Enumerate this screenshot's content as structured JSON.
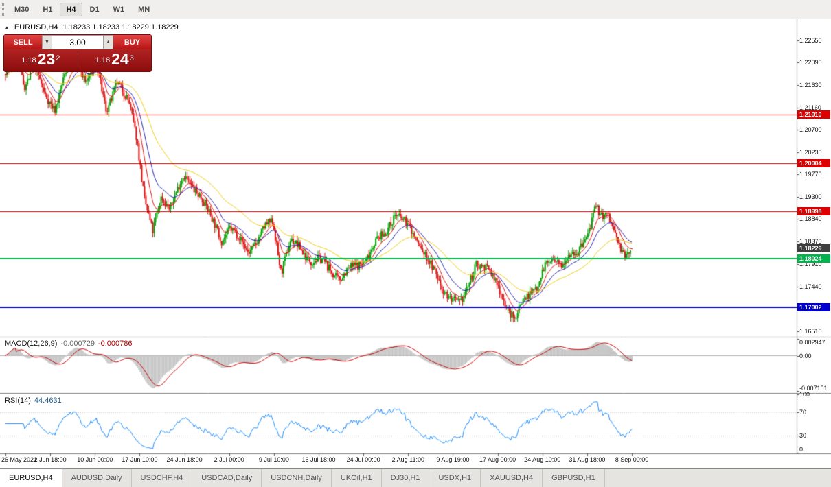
{
  "toolbar": {
    "timeframes": [
      "M30",
      "H1",
      "H4",
      "D1",
      "W1",
      "MN"
    ],
    "active_timeframe": "H4"
  },
  "chart": {
    "header": {
      "collapse_arrow": "▲",
      "symbol_period": "EURUSD,H4",
      "ohlc": "1.18233 1.18233 1.18229 1.18229"
    },
    "current_price": {
      "label": "1.18229",
      "value": 1.18229,
      "badge_color": "#3f3f3f"
    }
  },
  "trade_panel": {
    "sell_label": "SELL",
    "buy_label": "BUY",
    "volume": "3.00",
    "down_arrow": "▼",
    "up_arrow": "▲",
    "sell_price": {
      "prefix": "1.18",
      "big": "23",
      "sup": "2"
    },
    "buy_price": {
      "prefix": "1.18",
      "big": "24",
      "sup": "3"
    }
  },
  "price_axis": {
    "labels": [
      "1.22550",
      "1.22090",
      "1.21630",
      "1.21160",
      "1.20700",
      "1.20230",
      "1.19770",
      "1.19300",
      "1.18840",
      "1.18370",
      "1.17910",
      "1.17440",
      "1.16510"
    ]
  },
  "hlines": [
    {
      "price": 1.2101,
      "label": "1.21010",
      "color": "#dd0000",
      "width": 1
    },
    {
      "price": 1.20004,
      "label": "1.20004",
      "color": "#dd0000",
      "width": 1
    },
    {
      "price": 1.18998,
      "label": "1.18998",
      "color": "#dd0000",
      "width": 1
    },
    {
      "price": 1.18024,
      "label": "1.18024",
      "color": "#00b34d",
      "width": 2
    },
    {
      "price": 1.17002,
      "label": "1.17002",
      "color": "#0000cc",
      "width": 2
    }
  ],
  "time_axis": {
    "labels": [
      "26 May 2021",
      "2 Jun 18:00",
      "10 Jun 00:00",
      "17 Jun 10:00",
      "24 Jun 18:00",
      "2 Jul 00:00",
      "9 Jul 10:00",
      "16 Jul 18:00",
      "24 Jul 00:00",
      "2 Aug 11:00",
      "9 Aug 19:00",
      "17 Aug 00:00",
      "24 Aug 10:00",
      "31 Aug 18:00",
      "8 Sep 00:00"
    ]
  },
  "indicators": {
    "macd": {
      "title": "MACD(12,26,9)",
      "value_main": "-0.000729",
      "value_signal": "-0.000786",
      "axis_labels": [
        "0.002947",
        "0.00",
        "-0.007151"
      ]
    },
    "rsi": {
      "title": "RSI(14)",
      "value": "44.4631",
      "axis_labels": [
        "100",
        "70",
        "30",
        "0"
      ]
    }
  },
  "tabs": {
    "labels": [
      "EURUSD,H4",
      "AUDUSD,Daily",
      "USDCHF,H4",
      "USDCAD,Daily",
      "USDCNH,Daily",
      "UKOil,H1",
      "DJ30,H1",
      "USDX,H1",
      "XAUUSD,H4",
      "GBPUSD,H1"
    ],
    "active_index": 0
  },
  "chart_data": {
    "type": "candlestick",
    "symbol": "EURUSD",
    "timeframe": "H4",
    "y_range": [
      1.1651,
      1.2255
    ],
    "num_candles": 456,
    "seed": 7,
    "colors": {
      "up": "#00a000",
      "down": "#dd1111"
    },
    "moving_averages": [
      {
        "period": 10,
        "color": "#e01010"
      },
      {
        "period": 21,
        "color": "#2020b0"
      },
      {
        "period": 52,
        "color": "#f2cc0f"
      }
    ],
    "macd": {
      "fast": 12,
      "slow": 26,
      "signal": 9,
      "hist_color": "#c6c6c6",
      "signal_color": "#cc0000"
    },
    "rsi": {
      "period": 14,
      "color": "#1e90ff"
    },
    "last_candle": {
      "o": 1.18233,
      "h": 1.18233,
      "l": 1.18229,
      "c": 1.18229
    },
    "waypoints": [
      [
        0.0,
        1.2185
      ],
      [
        0.013,
        1.2245
      ],
      [
        0.03,
        1.2162
      ],
      [
        0.046,
        1.2208
      ],
      [
        0.062,
        1.2148
      ],
      [
        0.079,
        1.212
      ],
      [
        0.096,
        1.2188
      ],
      [
        0.112,
        1.2222
      ],
      [
        0.128,
        1.2165
      ],
      [
        0.145,
        1.2195
      ],
      [
        0.161,
        1.211
      ],
      [
        0.178,
        1.2172
      ],
      [
        0.198,
        1.2128
      ],
      [
        0.21,
        1.2058
      ],
      [
        0.222,
        1.1928
      ],
      [
        0.235,
        1.1852
      ],
      [
        0.249,
        1.1928
      ],
      [
        0.262,
        1.1902
      ],
      [
        0.285,
        1.1968
      ],
      [
        0.31,
        1.194
      ],
      [
        0.33,
        1.1888
      ],
      [
        0.345,
        1.1848
      ],
      [
        0.358,
        1.1868
      ],
      [
        0.372,
        1.1842
      ],
      [
        0.388,
        1.1812
      ],
      [
        0.402,
        1.1835
      ],
      [
        0.415,
        1.1862
      ],
      [
        0.427,
        1.1878
      ],
      [
        0.44,
        1.1778
      ],
      [
        0.455,
        1.1842
      ],
      [
        0.47,
        1.183
      ],
      [
        0.488,
        1.1802
      ],
      [
        0.505,
        1.1795
      ],
      [
        0.52,
        1.1772
      ],
      [
        0.533,
        1.1755
      ],
      [
        0.548,
        1.1772
      ],
      [
        0.562,
        1.1788
      ],
      [
        0.575,
        1.1805
      ],
      [
        0.59,
        1.184
      ],
      [
        0.605,
        1.1858
      ],
      [
        0.622,
        1.19
      ],
      [
        0.643,
        1.1865
      ],
      [
        0.66,
        1.183
      ],
      [
        0.678,
        1.1785
      ],
      [
        0.696,
        1.1742
      ],
      [
        0.715,
        1.1722
      ],
      [
        0.726,
        1.1708
      ],
      [
        0.74,
        1.1755
      ],
      [
        0.752,
        1.18
      ],
      [
        0.765,
        1.1785
      ],
      [
        0.778,
        1.1758
      ],
      [
        0.79,
        1.1732
      ],
      [
        0.802,
        1.1692
      ],
      [
        0.813,
        1.1667
      ],
      [
        0.824,
        1.1708
      ],
      [
        0.836,
        1.1732
      ],
      [
        0.849,
        1.1752
      ],
      [
        0.861,
        1.179
      ],
      [
        0.873,
        1.1802
      ],
      [
        0.886,
        1.1798
      ],
      [
        0.899,
        1.1812
      ],
      [
        0.913,
        1.1806
      ],
      [
        0.928,
        1.1845
      ],
      [
        0.942,
        1.1902
      ],
      [
        0.953,
        1.1882
      ],
      [
        0.963,
        1.1888
      ],
      [
        0.976,
        1.1852
      ],
      [
        0.988,
        1.181
      ],
      [
        1.0,
        1.1823
      ]
    ]
  }
}
